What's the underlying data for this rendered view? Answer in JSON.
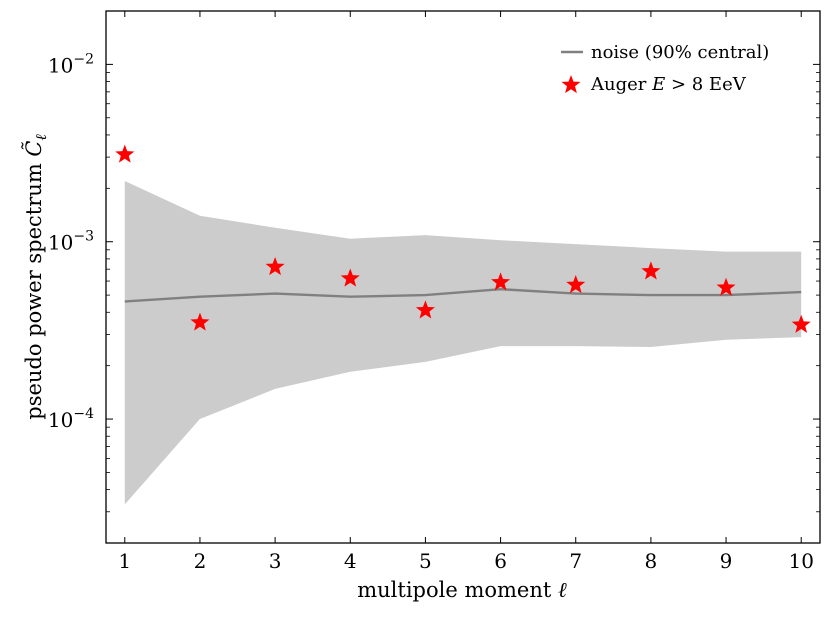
{
  "chart_data": {
    "type": "line",
    "xlabel_text": "multipole moment ",
    "xlabel_symbol": "ℓ",
    "ylabel_text": "pseudo power spectrum ",
    "ylabel_symbol": "C̃",
    "ylabel_subscript": "ℓ",
    "x": [
      1,
      2,
      3,
      4,
      5,
      6,
      7,
      8,
      9,
      10
    ],
    "xlim": [
      0.75,
      10.25
    ],
    "ylim": [
      2e-05,
      0.02
    ],
    "yscale": "log",
    "x_tick_labels": [
      "1",
      "2",
      "3",
      "4",
      "5",
      "6",
      "7",
      "8",
      "9",
      "10"
    ],
    "y_ticks": [
      {
        "value": 0.01,
        "base": "10",
        "exponent": "−2"
      },
      {
        "value": 0.001,
        "base": "10",
        "exponent": "−3"
      },
      {
        "value": 0.0001,
        "base": "10",
        "exponent": "−4"
      }
    ],
    "series": [
      {
        "name": "noise (90% central)",
        "kind": "line_with_band",
        "color": "#808080",
        "band_color": "#cccccc",
        "values": [
          0.00046,
          0.00049,
          0.00051,
          0.00049,
          0.0005,
          0.00054,
          0.00051,
          0.0005,
          0.0005,
          0.00052
        ],
        "band_upper": [
          0.0022,
          0.0014,
          0.0012,
          0.00104,
          0.00109,
          0.00102,
          0.00097,
          0.00092,
          0.00088,
          0.00088
        ],
        "band_lower": [
          3.3e-05,
          0.0001,
          0.000148,
          0.000185,
          0.00021,
          0.000258,
          0.000258,
          0.000255,
          0.00028,
          0.00029
        ]
      },
      {
        "name_prefix": "Auger ",
        "name_symbol": "E",
        "name_suffix": " > 8 EeV",
        "kind": "scatter",
        "marker": "star",
        "color": "#ff0000",
        "values": [
          0.0031,
          0.00035,
          0.00072,
          0.00062,
          0.00041,
          0.00059,
          0.00057,
          0.00068,
          0.00055,
          0.00034
        ]
      }
    ],
    "legend_position": "top-right"
  }
}
